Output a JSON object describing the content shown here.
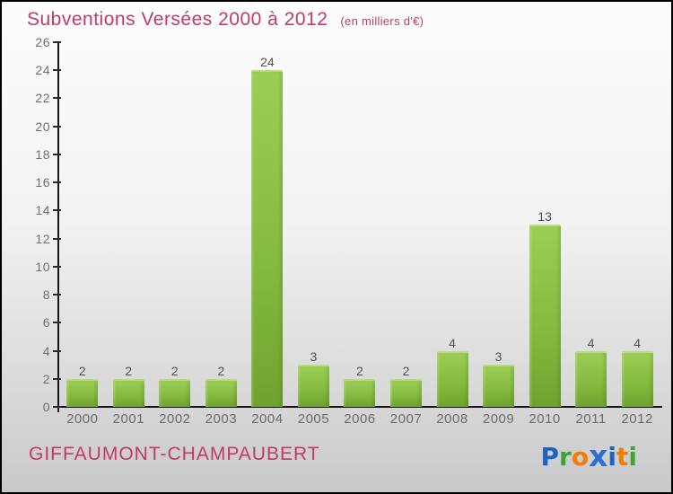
{
  "header": {
    "title": "Subventions Versées 2000 à 2012",
    "subtitle": "(en milliers d'€)"
  },
  "chart_data": {
    "type": "bar",
    "title": "Subventions Versées 2000 à 2012",
    "subtitle": "(en milliers d'€)",
    "categories": [
      "2000",
      "2001",
      "2002",
      "2003",
      "2004",
      "2005",
      "2006",
      "2007",
      "2008",
      "2009",
      "2010",
      "2011",
      "2012"
    ],
    "values": [
      2,
      2,
      2,
      2,
      24,
      3,
      2,
      2,
      4,
      3,
      13,
      4,
      4
    ],
    "xlabel": "",
    "ylabel": "",
    "ylim": [
      0,
      26
    ],
    "ytick_step": 2,
    "grid": false,
    "legend": false,
    "value_labels": true,
    "bar_color_top": "#9ccd55",
    "bar_color_bottom": "#6fa32f",
    "axis_color": "#151515",
    "tick_label_color": "#6f6f6f",
    "value_label_color": "#4f4f4f",
    "title_color": "#c13a6b"
  },
  "footer": {
    "location": "GIFFAUMONT-CHAMPAUBERT",
    "logo": {
      "name": "Proxiti",
      "letters": [
        {
          "char": "P",
          "color": "#1e63c4",
          "big": false
        },
        {
          "char": "r",
          "color": "#3ca43c",
          "big": false
        },
        {
          "char": "o",
          "color": "#f07d05",
          "big": false
        },
        {
          "char": "x",
          "color": "#2a6fd6",
          "big": true
        },
        {
          "char": "i",
          "color": "#1e63c4",
          "big": false
        },
        {
          "char": "t",
          "color": "#f07d05",
          "big": false
        },
        {
          "char": "i",
          "color": "#3ca43c",
          "big": false
        }
      ]
    }
  }
}
